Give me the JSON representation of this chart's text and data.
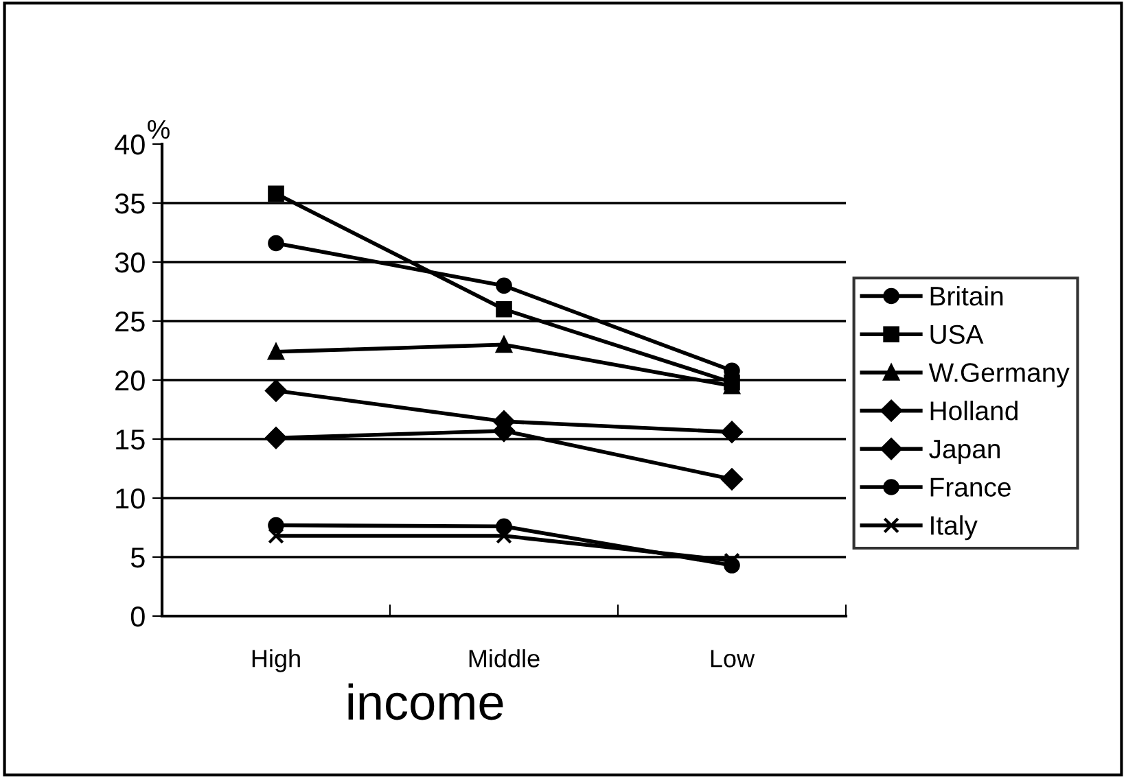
{
  "chart_data": {
    "type": "line",
    "xlabel": "income",
    "ylabel": "%",
    "categories": [
      "High",
      "Middle",
      "Low"
    ],
    "series": [
      {
        "name": "Britain",
        "color": "#000000",
        "marker": "circle",
        "values": [
          31.6,
          28,
          20.8
        ]
      },
      {
        "name": "USA",
        "color": "#000000",
        "marker": "square",
        "values": [
          35.8,
          26,
          19.8
        ]
      },
      {
        "name": "W.Germany",
        "color": "#000000",
        "marker": "triangle",
        "values": [
          22.4,
          23,
          19.5
        ]
      },
      {
        "name": "Holland",
        "color": "#000000",
        "marker": "diamond",
        "values": [
          19.1,
          16.5,
          15.6
        ]
      },
      {
        "name": "Japan",
        "color": "#000000",
        "marker": "diamond",
        "values": [
          15.1,
          15.7,
          11.6
        ]
      },
      {
        "name": "France",
        "color": "#000000",
        "marker": "circle",
        "values": [
          7.7,
          7.6,
          4.3
        ]
      },
      {
        "name": "Italy",
        "color": "#000000",
        "marker": "cross",
        "values": [
          6.8,
          6.8,
          4.7
        ]
      }
    ],
    "ylim": [
      0,
      40
    ],
    "yticks": [
      0,
      5,
      10,
      15,
      20,
      25,
      30,
      35,
      40
    ],
    "grid": "y",
    "legend": "right",
    "line_style": "solid"
  }
}
